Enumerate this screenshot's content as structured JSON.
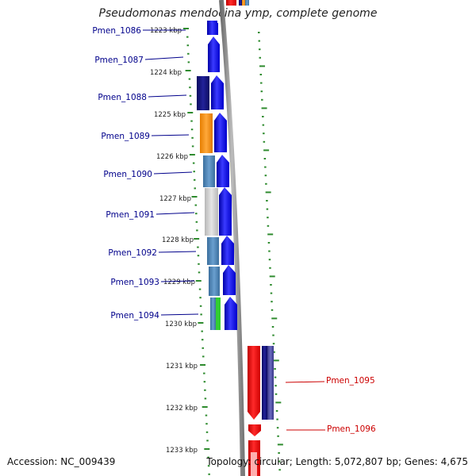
{
  "title": "Pseudomonas mendocina ymp, complete genome",
  "footer": {
    "accession": "Accession: NC_009439",
    "topology": "Topology: circular; Length: 5,072,807 bp; Genes: 4,675"
  },
  "kbp_labels": [
    "1223 kbp",
    "1224 kbp",
    "1225 kbp",
    "1226 kbp",
    "1227 kbp",
    "1228 kbp",
    "1229 kbp",
    "1230 kbp",
    "1231 kbp",
    "1232 kbp",
    "1233 kbp"
  ],
  "genes": [
    {
      "name": "Pmen_1086",
      "strand": "forward"
    },
    {
      "name": "Pmen_1087",
      "strand": "forward"
    },
    {
      "name": "Pmen_1088",
      "strand": "forward"
    },
    {
      "name": "Pmen_1089",
      "strand": "forward"
    },
    {
      "name": "Pmen_1090",
      "strand": "forward"
    },
    {
      "name": "Pmen_1091",
      "strand": "forward"
    },
    {
      "name": "Pmen_1092",
      "strand": "forward"
    },
    {
      "name": "Pmen_1093",
      "strand": "forward"
    },
    {
      "name": "Pmen_1094",
      "strand": "forward"
    },
    {
      "name": "Pmen_1095",
      "strand": "reverse"
    },
    {
      "name": "Pmen_1096",
      "strand": "reverse"
    }
  ],
  "colors": {
    "forward_gene": "#0000ee",
    "reverse_gene": "#ee0000",
    "backbone": "#8c8c8c",
    "ticks": "#2e8b2e",
    "orange": "#ff8c00",
    "steelblue": "#4682b4",
    "grey": "#c8c8c8",
    "navy": "#1a1a80",
    "green": "#32cd32",
    "slate": "#4b4ba0"
  }
}
